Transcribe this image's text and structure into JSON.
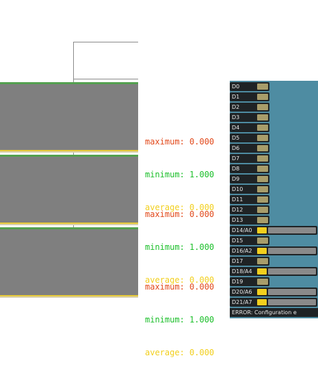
{
  "graphs": [
    {
      "maximum": "maximum: 0.000",
      "minimum": "minimum: 1.000",
      "average": "average: 0.000"
    },
    {
      "maximum": "maximum: 0.000",
      "minimum": "minimum: 1.000",
      "average": "average: 0.000"
    },
    {
      "maximum": "maximum: 0.000",
      "minimum": "minimum: 1.000",
      "average": "average: 0.000"
    }
  ],
  "pins": [
    {
      "label": "D0",
      "analog": false
    },
    {
      "label": "D1",
      "analog": false
    },
    {
      "label": "D2",
      "analog": false
    },
    {
      "label": "D3",
      "analog": false
    },
    {
      "label": "D4",
      "analog": false
    },
    {
      "label": "D5",
      "analog": false
    },
    {
      "label": "D6",
      "analog": false
    },
    {
      "label": "D7",
      "analog": false
    },
    {
      "label": "D8",
      "analog": false
    },
    {
      "label": "D9",
      "analog": false
    },
    {
      "label": "D10",
      "analog": false
    },
    {
      "label": "D11",
      "analog": false
    },
    {
      "label": "D12",
      "analog": false
    },
    {
      "label": "D13",
      "analog": false
    },
    {
      "label": "D14/A0",
      "analog": true
    },
    {
      "label": "D15",
      "analog": false
    },
    {
      "label": "D16/A2",
      "analog": true
    },
    {
      "label": "D17",
      "analog": false
    },
    {
      "label": "D18/A4",
      "analog": true
    },
    {
      "label": "D19",
      "analog": false
    },
    {
      "label": "D20/A6",
      "analog": true
    },
    {
      "label": "D21/A7",
      "analog": true
    }
  ],
  "error": "ERROR: Configuration e",
  "colors": {
    "maximum": "#e2491b",
    "minimum": "#1bbf2a",
    "average": "#f2cf1d",
    "panel_bg": "#4e8ca2"
  }
}
